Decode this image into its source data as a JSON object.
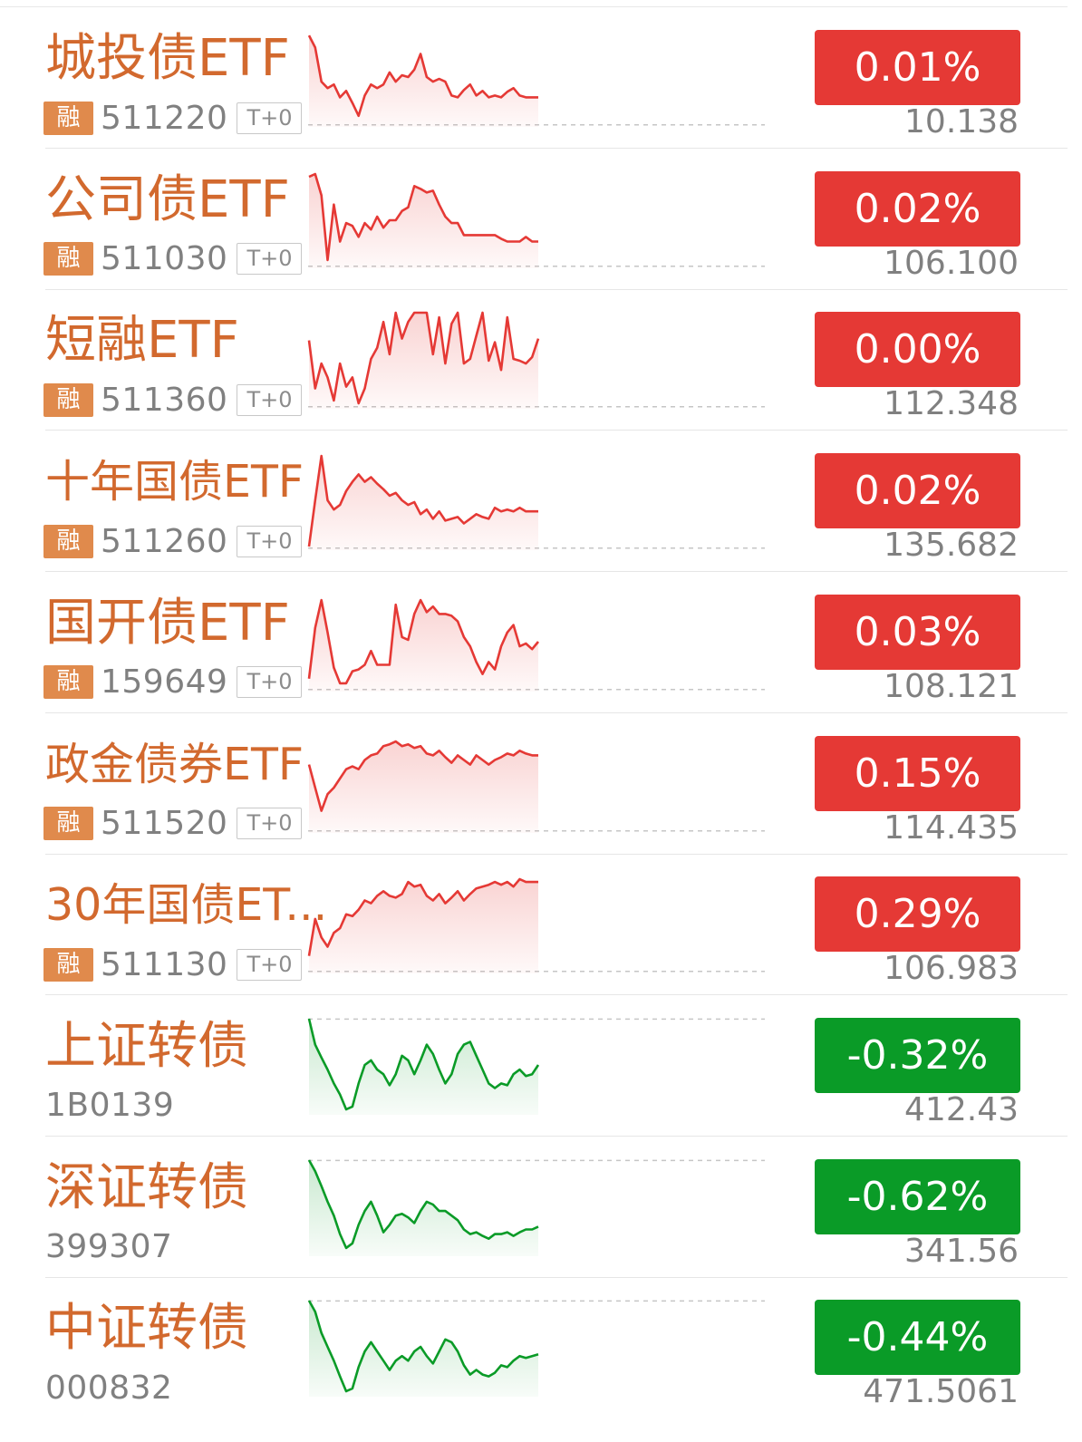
{
  "colors": {
    "up": "#e53935",
    "down": "#0a9b27",
    "name": "#d2692e",
    "badge": "#e08a4c"
  },
  "rows": [
    {
      "name": "城投债ETF",
      "code": "511220",
      "badge": "融",
      "tag": "T+0",
      "change": "0.01%",
      "price": "10.138",
      "trend": "up",
      "spark": [
        0.05,
        0.18,
        0.55,
        0.62,
        0.58,
        0.72,
        0.65,
        0.78,
        0.92,
        0.7,
        0.58,
        0.62,
        0.58,
        0.45,
        0.55,
        0.48,
        0.5,
        0.42,
        0.25,
        0.5,
        0.55,
        0.52,
        0.55,
        0.7,
        0.72,
        0.64,
        0.58,
        0.7,
        0.65,
        0.72,
        0.7,
        0.72,
        0.66,
        0.62,
        0.7,
        0.72,
        0.72,
        0.72
      ]
    },
    {
      "name": "公司债ETF",
      "code": "511030",
      "badge": "融",
      "tag": "T+0",
      "change": "0.02%",
      "price": "106.100",
      "trend": "up",
      "spark": [
        0.05,
        0.02,
        0.25,
        0.95,
        0.35,
        0.75,
        0.55,
        0.58,
        0.7,
        0.55,
        0.62,
        0.48,
        0.6,
        0.52,
        0.52,
        0.42,
        0.38,
        0.15,
        0.18,
        0.22,
        0.2,
        0.35,
        0.48,
        0.55,
        0.55,
        0.68,
        0.68,
        0.68,
        0.68,
        0.68,
        0.68,
        0.72,
        0.75,
        0.75,
        0.75,
        0.7,
        0.75,
        0.75
      ]
    },
    {
      "name": "短融ETF",
      "code": "511360",
      "badge": "融",
      "tag": "T+0",
      "change": "0.00%",
      "price": "112.348",
      "trend": "up",
      "spark": [
        0.3,
        0.82,
        0.55,
        0.7,
        0.95,
        0.55,
        0.8,
        0.7,
        0.98,
        0.82,
        0.5,
        0.38,
        0.1,
        0.45,
        0.0,
        0.28,
        0.1,
        0.0,
        0.0,
        0.0,
        0.45,
        0.05,
        0.55,
        0.12,
        0.0,
        0.55,
        0.5,
        0.25,
        0.0,
        0.52,
        0.32,
        0.62,
        0.05,
        0.5,
        0.52,
        0.55,
        0.48,
        0.28
      ]
    },
    {
      "name": "十年国债ETF",
      "code": "511260",
      "badge": "融",
      "tag": "T+0",
      "change": "0.02%",
      "price": "135.682",
      "trend": "up",
      "spark": [
        1.0,
        0.5,
        0.02,
        0.5,
        0.6,
        0.55,
        0.4,
        0.3,
        0.22,
        0.3,
        0.25,
        0.32,
        0.38,
        0.45,
        0.42,
        0.5,
        0.55,
        0.52,
        0.65,
        0.6,
        0.7,
        0.62,
        0.72,
        0.7,
        0.68,
        0.75,
        0.7,
        0.65,
        0.68,
        0.7,
        0.58,
        0.62,
        0.6,
        0.62,
        0.58,
        0.62,
        0.62,
        0.62
      ]
    },
    {
      "name": "国开债ETF",
      "code": "159649",
      "badge": "融",
      "tag": "T+0",
      "change": "0.03%",
      "price": "108.121",
      "trend": "up",
      "spark": [
        0.9,
        0.35,
        0.05,
        0.4,
        0.78,
        0.95,
        0.95,
        0.82,
        0.8,
        0.75,
        0.6,
        0.75,
        0.75,
        0.75,
        0.1,
        0.45,
        0.48,
        0.2,
        0.05,
        0.18,
        0.12,
        0.2,
        0.2,
        0.22,
        0.28,
        0.45,
        0.55,
        0.72,
        0.85,
        0.72,
        0.8,
        0.55,
        0.4,
        0.32,
        0.55,
        0.52,
        0.58,
        0.5
      ]
    },
    {
      "name": "政金债券ETF",
      "code": "511520",
      "badge": "融",
      "tag": "T+0",
      "change": "0.15%",
      "price": "114.435",
      "trend": "up",
      "spark": [
        0.3,
        0.55,
        0.8,
        0.62,
        0.55,
        0.45,
        0.35,
        0.32,
        0.35,
        0.25,
        0.2,
        0.18,
        0.1,
        0.08,
        0.05,
        0.1,
        0.08,
        0.12,
        0.1,
        0.18,
        0.2,
        0.15,
        0.22,
        0.28,
        0.2,
        0.25,
        0.3,
        0.2,
        0.25,
        0.3,
        0.25,
        0.22,
        0.18,
        0.2,
        0.15,
        0.18,
        0.2,
        0.2
      ]
    },
    {
      "name": "30年国债ET...",
      "code": "511130",
      "badge": "融",
      "tag": "T+0",
      "change": "0.29%",
      "price": "106.983",
      "trend": "up",
      "spark": [
        0.85,
        0.45,
        0.65,
        0.75,
        0.6,
        0.55,
        0.4,
        0.42,
        0.35,
        0.25,
        0.28,
        0.2,
        0.15,
        0.2,
        0.22,
        0.18,
        0.05,
        0.1,
        0.08,
        0.2,
        0.25,
        0.18,
        0.28,
        0.22,
        0.15,
        0.25,
        0.18,
        0.12,
        0.1,
        0.08,
        0.05,
        0.08,
        0.05,
        0.1,
        0.02,
        0.05,
        0.05,
        0.05
      ]
    },
    {
      "name": "上证转债",
      "code": "1B0139",
      "change": "-0.32%",
      "price": "412.43",
      "trend": "down",
      "spark": [
        0.0,
        0.28,
        0.42,
        0.55,
        0.7,
        0.82,
        0.98,
        0.95,
        0.7,
        0.5,
        0.45,
        0.55,
        0.6,
        0.72,
        0.6,
        0.4,
        0.45,
        0.6,
        0.45,
        0.28,
        0.38,
        0.55,
        0.7,
        0.6,
        0.38,
        0.28,
        0.25,
        0.4,
        0.55,
        0.7,
        0.75,
        0.7,
        0.72,
        0.6,
        0.55,
        0.62,
        0.6,
        0.5
      ]
    },
    {
      "name": "深证转债",
      "code": "399307",
      "change": "-0.62%",
      "price": "341.56",
      "trend": "down",
      "spark": [
        0.0,
        0.12,
        0.28,
        0.45,
        0.6,
        0.8,
        0.95,
        0.9,
        0.7,
        0.55,
        0.45,
        0.6,
        0.78,
        0.7,
        0.6,
        0.58,
        0.62,
        0.68,
        0.55,
        0.45,
        0.48,
        0.55,
        0.55,
        0.6,
        0.65,
        0.75,
        0.8,
        0.78,
        0.82,
        0.85,
        0.8,
        0.8,
        0.78,
        0.82,
        0.78,
        0.75,
        0.75,
        0.72
      ]
    },
    {
      "name": "中证转债",
      "code": "000832",
      "change": "-0.44%",
      "price": "471.5061",
      "trend": "down",
      "spark": [
        0.0,
        0.12,
        0.35,
        0.5,
        0.65,
        0.82,
        0.98,
        0.95,
        0.72,
        0.55,
        0.45,
        0.55,
        0.65,
        0.75,
        0.65,
        0.6,
        0.65,
        0.55,
        0.5,
        0.6,
        0.68,
        0.55,
        0.42,
        0.45,
        0.55,
        0.7,
        0.8,
        0.75,
        0.8,
        0.82,
        0.78,
        0.7,
        0.72,
        0.65,
        0.6,
        0.62,
        0.6,
        0.58
      ]
    }
  ]
}
